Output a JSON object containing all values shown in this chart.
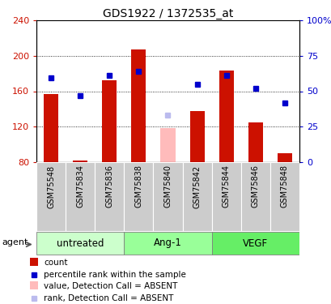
{
  "title": "GDS1922 / 1372535_at",
  "samples": [
    "GSM75548",
    "GSM75834",
    "GSM75836",
    "GSM75838",
    "GSM75840",
    "GSM75842",
    "GSM75844",
    "GSM75846",
    "GSM75848"
  ],
  "bar_values": [
    157,
    82,
    172,
    207,
    118,
    138,
    183,
    125,
    90
  ],
  "bar_absent": [
    false,
    false,
    false,
    false,
    true,
    false,
    false,
    false,
    false
  ],
  "rank_values": [
    175,
    155,
    178,
    182,
    133,
    168,
    178,
    163,
    147
  ],
  "rank_absent": [
    false,
    false,
    false,
    false,
    true,
    false,
    false,
    false,
    false
  ],
  "bar_bottom": 80,
  "ylim": [
    80,
    240
  ],
  "yticks": [
    80,
    120,
    160,
    200,
    240
  ],
  "right_ylim": [
    0,
    100
  ],
  "right_yticks": [
    0,
    25,
    50,
    75,
    100
  ],
  "right_yticklabels": [
    "0",
    "25",
    "50",
    "75",
    "100%"
  ],
  "groups": [
    {
      "label": "untreated",
      "color": "#ccffcc"
    },
    {
      "label": "Ang-1",
      "color": "#99ff99"
    },
    {
      "label": "VEGF",
      "color": "#66ee66"
    }
  ],
  "group_boundaries": [
    0,
    3,
    6,
    9
  ],
  "bar_color_present": "#cc1100",
  "bar_color_absent": "#ffbbbb",
  "rank_color_present": "#0000cc",
  "rank_color_absent": "#bbbbee",
  "rank_marker_size": 5,
  "bar_width": 0.5,
  "sample_bg_color": "#cccccc",
  "legend_items": [
    {
      "label": "count",
      "color": "#cc1100",
      "type": "rect"
    },
    {
      "label": "percentile rank within the sample",
      "color": "#0000cc",
      "type": "square"
    },
    {
      "label": "value, Detection Call = ABSENT",
      "color": "#ffbbbb",
      "type": "rect"
    },
    {
      "label": "rank, Detection Call = ABSENT",
      "color": "#bbbbee",
      "type": "square"
    }
  ],
  "agent_label": "agent"
}
